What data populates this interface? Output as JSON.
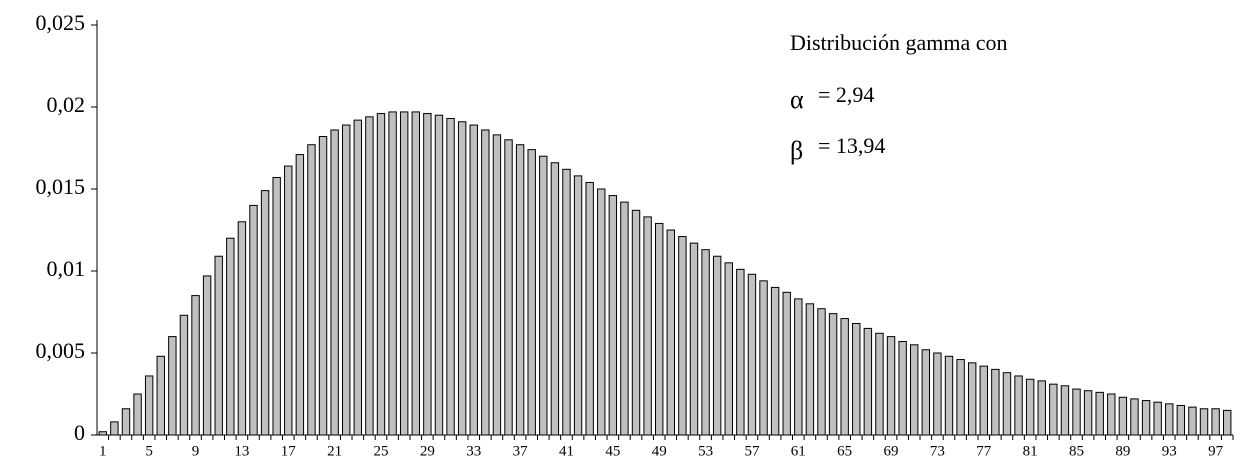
{
  "chart_data": {
    "type": "bar",
    "categories": [
      "1",
      null,
      null,
      null,
      "5",
      null,
      null,
      null,
      "9",
      null,
      null,
      null,
      "13",
      null,
      null,
      null,
      "17",
      null,
      null,
      null,
      "21",
      null,
      null,
      null,
      "25",
      null,
      null,
      null,
      "29",
      null,
      null,
      null,
      "33",
      null,
      null,
      null,
      "37",
      null,
      null,
      null,
      "41",
      null,
      null,
      null,
      "45",
      null,
      null,
      null,
      "49",
      null,
      null,
      null,
      "53",
      null,
      null,
      null,
      "57",
      null,
      null,
      null,
      "61",
      null,
      null,
      null,
      "65",
      null,
      null,
      null,
      "69",
      null,
      null,
      null,
      "73",
      null,
      null,
      null,
      "77",
      null,
      null,
      null,
      "81",
      null,
      null,
      null,
      "85",
      null,
      null,
      null,
      "89",
      null,
      null,
      null,
      "93",
      null,
      null,
      null,
      "97",
      null
    ],
    "values": [
      0.0002,
      0.0008,
      0.0016,
      0.0025,
      0.0036,
      0.0048,
      0.006,
      0.0073,
      0.0085,
      0.0097,
      0.0109,
      0.012,
      0.013,
      0.014,
      0.0149,
      0.0157,
      0.0164,
      0.0171,
      0.0177,
      0.0182,
      0.0186,
      0.0189,
      0.0192,
      0.0194,
      0.0196,
      0.0197,
      0.0197,
      0.0197,
      0.0196,
      0.0195,
      0.0193,
      0.0191,
      0.0189,
      0.0186,
      0.0183,
      0.018,
      0.0177,
      0.0174,
      0.017,
      0.0166,
      0.0162,
      0.0158,
      0.0154,
      0.015,
      0.0146,
      0.0142,
      0.0137,
      0.0133,
      0.0129,
      0.0125,
      0.0121,
      0.0117,
      0.0113,
      0.0109,
      0.0105,
      0.0101,
      0.0098,
      0.0094,
      0.009,
      0.0087,
      0.0083,
      0.008,
      0.0077,
      0.0074,
      0.0071,
      0.0068,
      0.0065,
      0.0062,
      0.006,
      0.0057,
      0.0055,
      0.0052,
      0.005,
      0.0048,
      0.0046,
      0.0044,
      0.0042,
      0.004,
      0.0038,
      0.0036,
      0.0034,
      0.0033,
      0.0031,
      0.003,
      0.0028,
      0.0027,
      0.0026,
      0.0025,
      0.0023,
      0.0022,
      0.0021,
      0.002,
      0.0019,
      0.0018,
      0.0017,
      0.0016,
      0.0016,
      0.0015
    ],
    "color": "#c0c0c0",
    "ylim": [
      0,
      0.025
    ],
    "yticks": [
      0,
      {
        "value": 0.005,
        "label": "0,005"
      },
      {
        "value": 0.01,
        "label": "0,01"
      },
      {
        "value": 0.015,
        "label": "0,015"
      },
      {
        "value": 0.02,
        "label": "0,02"
      },
      {
        "value": 0.025,
        "label": "0,025"
      }
    ],
    "grid": false,
    "annotations": [
      "Distribución gamma con",
      "α",
      "= 2,94",
      "β",
      "= 13,94"
    ]
  }
}
